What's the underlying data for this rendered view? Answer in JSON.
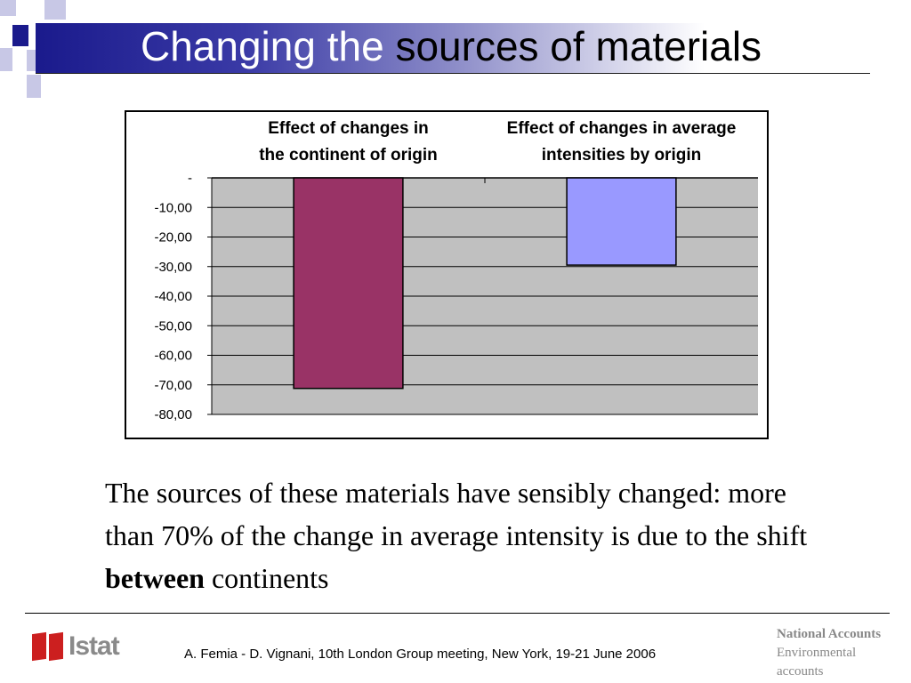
{
  "slide": {
    "title_part1": "Changing the",
    "title_part2": "sources of materials",
    "body_part1": "The sources of  these materials have sensibly changed: more than 70% of  the change in average intensity is due to the shift",
    "body_bold": "between",
    "body_part2": "continents"
  },
  "footer": {
    "logo_text": "Istat",
    "citation": "A. Femia - D. Vignani, 10th London Group meeting, New York, 19-21 June 2006",
    "right_line1": "National Accounts",
    "right_line2": "Environmental",
    "right_line3": "accounts"
  },
  "colors": {
    "bar1": "#993366",
    "bar2": "#9999ff",
    "plot_bg": "#c0c0c0",
    "title_band": "#1a1a8c",
    "logo_red": "#cc1f1f"
  },
  "chart_data": {
    "type": "bar",
    "categories": [
      [
        "Effect of changes in",
        "the continent of origin"
      ],
      [
        "Effect of changes in average",
        "intensities by origin"
      ]
    ],
    "values": [
      -71.2,
      -29.5
    ],
    "ylim": [
      -80,
      0
    ],
    "yticks": [
      0,
      -10,
      -20,
      -30,
      -40,
      -50,
      -60,
      -70,
      -80
    ],
    "ytick_labels": [
      "-",
      "-10,00",
      "-20,00",
      "-30,00",
      "-40,00",
      "-50,00",
      "-60,00",
      "-70,00",
      "-80,00"
    ],
    "category_labels_position": "top",
    "grid": true,
    "legend": "none"
  }
}
